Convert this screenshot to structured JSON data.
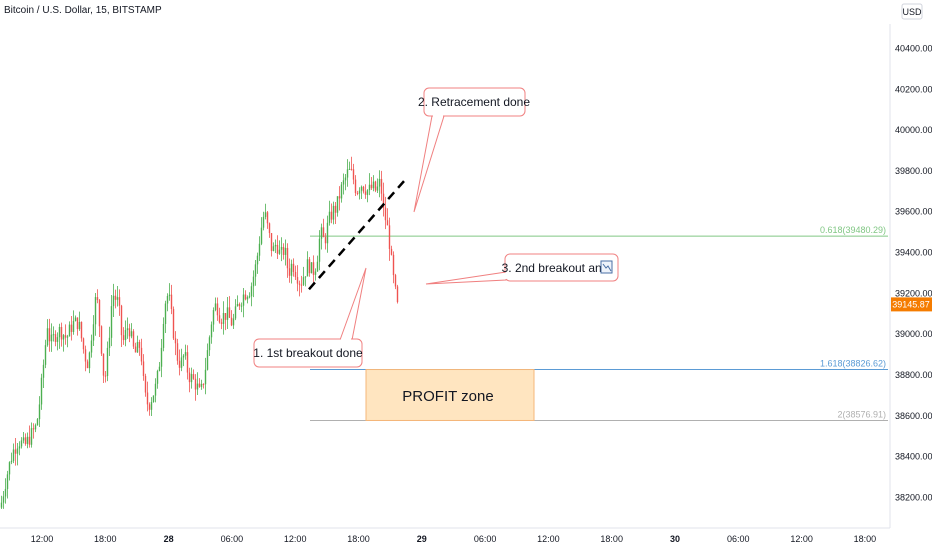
{
  "header": {
    "title": "Bitcoin / U.S. Dollar, 15, BITSTAMP",
    "currency": "USD"
  },
  "colors": {
    "up": "#26a69a",
    "up_candle": "#4caf50",
    "down": "#ef5350",
    "fib_618": "#81c784",
    "fib_1618": "#5b9bd5",
    "fib_2": "#b0b0b0",
    "profit_fill": "#ffe5c0",
    "profit_border": "#f5b77a",
    "callout_border": "#f08080",
    "price_tag": "#f57c00"
  },
  "chart_data": {
    "type": "candlestick",
    "title": "Bitcoin / U.S. Dollar, 15, BITSTAMP",
    "ylim": [
      38050,
      40520
    ],
    "y_ticks": [
      "40400.00",
      "40200.00",
      "40000.00",
      "39800.00",
      "39600.00",
      "39400.00",
      "39200.00",
      "39000.00",
      "38800.00",
      "38600.00",
      "38400.00",
      "38200.00"
    ],
    "x_ticks": [
      "12:00",
      "18:00",
      "28",
      "06:00",
      "12:00",
      "18:00",
      "29",
      "06:00",
      "12:00",
      "18:00",
      "30",
      "06:00",
      "12:00",
      "18:00"
    ],
    "last_price": "39145.87",
    "price_path": [
      [
        0,
        38150
      ],
      [
        6,
        38300
      ],
      [
        12,
        38420
      ],
      [
        18,
        38480
      ],
      [
        24,
        38450
      ],
      [
        30,
        38500
      ],
      [
        36,
        38550
      ],
      [
        40,
        38700
      ],
      [
        44,
        38900
      ],
      [
        47,
        39050
      ],
      [
        50,
        38950
      ],
      [
        55,
        39000
      ],
      [
        60,
        39020
      ],
      [
        66,
        38980
      ],
      [
        72,
        39050
      ],
      [
        78,
        39060
      ],
      [
        84,
        38900
      ],
      [
        88,
        38850
      ],
      [
        92,
        39050
      ],
      [
        96,
        39200
      ],
      [
        100,
        39000
      ],
      [
        104,
        38750
      ],
      [
        108,
        38950
      ],
      [
        112,
        39200
      ],
      [
        118,
        39150
      ],
      [
        122,
        38950
      ],
      [
        128,
        39050
      ],
      [
        134,
        38900
      ],
      [
        140,
        38950
      ],
      [
        144,
        38700
      ],
      [
        148,
        38650
      ],
      [
        152,
        38700
      ],
      [
        156,
        38750
      ],
      [
        160,
        38900
      ],
      [
        164,
        39150
      ],
      [
        168,
        39200
      ],
      [
        172,
        39050
      ],
      [
        176,
        38900
      ],
      [
        180,
        38850
      ],
      [
        184,
        38900
      ],
      [
        188,
        38800
      ],
      [
        192,
        38780
      ],
      [
        196,
        38750
      ],
      [
        200,
        38700
      ],
      [
        204,
        38800
      ],
      [
        208,
        38950
      ],
      [
        212,
        39100
      ],
      [
        216,
        39150
      ],
      [
        220,
        39080
      ],
      [
        226,
        39100
      ],
      [
        232,
        39050
      ],
      [
        238,
        39150
      ],
      [
        244,
        39200
      ],
      [
        250,
        39220
      ],
      [
        256,
        39350
      ],
      [
        260,
        39500
      ],
      [
        264,
        39600
      ],
      [
        268,
        39500
      ],
      [
        272,
        39400
      ],
      [
        276,
        39450
      ],
      [
        280,
        39380
      ],
      [
        284,
        39420
      ],
      [
        288,
        39300
      ],
      [
        292,
        39350
      ],
      [
        296,
        39300
      ],
      [
        300,
        39250
      ],
      [
        304,
        39300
      ],
      [
        308,
        39350
      ],
      [
        312,
        39300
      ],
      [
        316,
        39350
      ],
      [
        320,
        39500
      ],
      [
        324,
        39450
      ],
      [
        328,
        39550
      ],
      [
        332,
        39600
      ],
      [
        336,
        39620
      ],
      [
        340,
        39700
      ],
      [
        344,
        39750
      ],
      [
        348,
        39800
      ],
      [
        352,
        39780
      ],
      [
        356,
        39700
      ],
      [
        360,
        39740
      ],
      [
        364,
        39720
      ],
      [
        368,
        39700
      ],
      [
        372,
        39720
      ],
      [
        376,
        39700
      ],
      [
        380,
        39750
      ],
      [
        383,
        39600
      ],
      [
        386,
        39550
      ],
      [
        389,
        39450
      ],
      [
        392,
        39300
      ],
      [
        395,
        39200
      ],
      [
        398,
        39100
      ]
    ],
    "fib_levels": [
      {
        "label": "0.618(39480.29)",
        "value": 39480.29
      },
      {
        "label": "1.618(38826.62)",
        "value": 38826.62
      },
      {
        "label": "2(38576.91)",
        "value": 38576.91
      }
    ],
    "profit_zone": {
      "label": "PROFIT zone",
      "top": 38826.62,
      "bottom": 38576.91
    },
    "trendline": {
      "from": [
        39220,
        0
      ],
      "to": [
        39750,
        1
      ]
    },
    "annotations": [
      {
        "label": "1. 1st breakout done"
      },
      {
        "label": "2. Retracement done"
      },
      {
        "label": "3. 2nd breakout and"
      }
    ]
  }
}
